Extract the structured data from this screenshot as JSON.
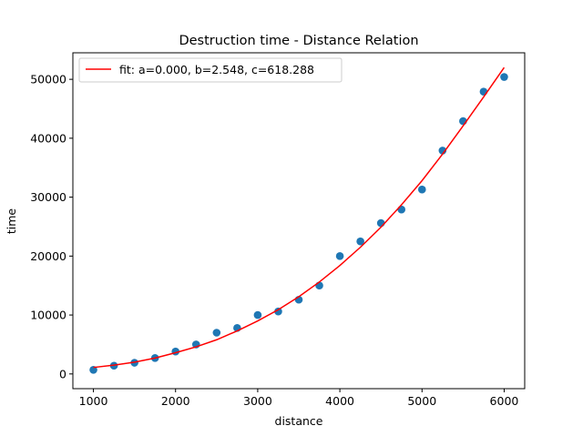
{
  "chart_data": {
    "type": "scatter",
    "title": "Destruction time - Distance Relation",
    "xlabel": "distance",
    "ylabel": "time",
    "xlim": [
      750,
      6250
    ],
    "ylim": [
      -2500,
      54500
    ],
    "xticks": [
      1000,
      2000,
      3000,
      4000,
      5000,
      6000
    ],
    "yticks": [
      0,
      10000,
      20000,
      30000,
      40000,
      50000
    ],
    "grid": false,
    "legend_position": "top-left",
    "series": [
      {
        "kind": "scatter",
        "color": "#1f77b4",
        "x": [
          1000,
          1250,
          1500,
          1750,
          2000,
          2250,
          2500,
          2750,
          3000,
          3250,
          3500,
          3750,
          4000,
          4250,
          4500,
          4750,
          5000,
          5250,
          5500,
          5750,
          6000
        ],
        "y": [
          700,
          1400,
          1900,
          2700,
          3800,
          5000,
          7000,
          7800,
          10000,
          10600,
          12600,
          15000,
          20000,
          22500,
          25600,
          27900,
          31300,
          37900,
          42900,
          47900,
          50400
        ]
      },
      {
        "kind": "line",
        "name": "fit: a=0.000, b=2.548, c=618.288",
        "color": "#ff0000",
        "x": [
          1000,
          1250,
          1500,
          1750,
          2000,
          2250,
          2500,
          2750,
          3000,
          3250,
          3500,
          3750,
          4000,
          4250,
          4500,
          4750,
          5000,
          5250,
          5500,
          5750,
          6000
        ],
        "y": [
          1100,
          1500,
          2000,
          2700,
          3600,
          4600,
          5800,
          7300,
          9000,
          10900,
          13100,
          15600,
          18400,
          21500,
          24900,
          28700,
          32800,
          37300,
          42100,
          47000,
          52000
        ]
      }
    ]
  }
}
